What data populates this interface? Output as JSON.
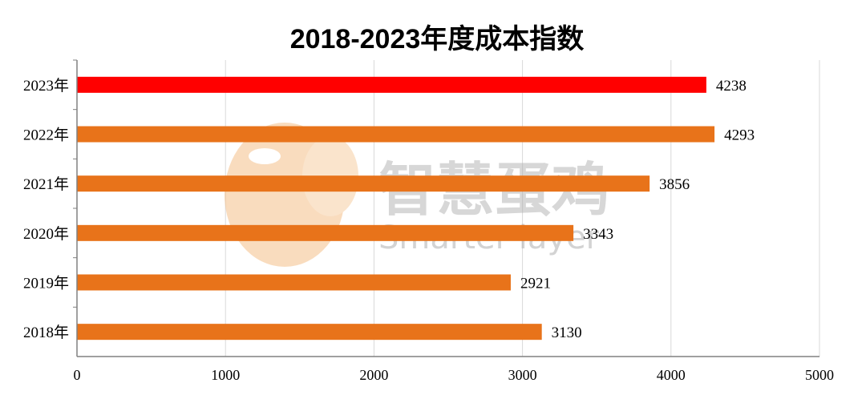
{
  "chart_data": {
    "type": "bar",
    "orientation": "horizontal",
    "title": "2018-2023年度成本指数",
    "categories": [
      "2023年",
      "2022年",
      "2021年",
      "2020年",
      "2019年",
      "2018年"
    ],
    "values": [
      4238,
      4293,
      3856,
      3343,
      2921,
      3130
    ],
    "xlim": [
      0,
      5000
    ],
    "xticks": [
      0,
      1000,
      2000,
      3000,
      4000,
      5000
    ],
    "xlabel": "",
    "ylabel": "",
    "grid": "vertical",
    "colors": {
      "default": "#E8731A",
      "highlight": "#FF0000",
      "highlight_category": "2023年",
      "grid": "#D9D9D9",
      "axis": "#808080"
    }
  },
  "watermark": {
    "text_cn": "智慧蛋鸡",
    "text_en": "Smarter layer",
    "logo_icon": "chicken-head-logo"
  }
}
